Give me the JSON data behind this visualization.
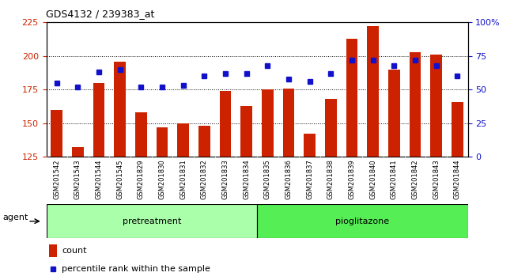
{
  "title": "GDS4132 / 239383_at",
  "samples": [
    "GSM201542",
    "GSM201543",
    "GSM201544",
    "GSM201545",
    "GSM201829",
    "GSM201830",
    "GSM201831",
    "GSM201832",
    "GSM201833",
    "GSM201834",
    "GSM201835",
    "GSM201836",
    "GSM201837",
    "GSM201838",
    "GSM201839",
    "GSM201840",
    "GSM201841",
    "GSM201842",
    "GSM201843",
    "GSM201844"
  ],
  "counts": [
    160,
    132,
    180,
    196,
    158,
    147,
    150,
    148,
    174,
    163,
    175,
    176,
    142,
    168,
    213,
    222,
    190,
    203,
    201,
    166
  ],
  "percentiles": [
    55,
    52,
    63,
    65,
    52,
    52,
    53,
    60,
    62,
    62,
    68,
    58,
    56,
    62,
    72,
    72,
    68,
    72,
    68,
    60
  ],
  "bar_color": "#cc2200",
  "dot_color": "#1111cc",
  "ylim_left": [
    125,
    225
  ],
  "ylim_right": [
    0,
    100
  ],
  "yticks_left": [
    125,
    150,
    175,
    200,
    225
  ],
  "yticks_right": [
    0,
    25,
    50,
    75,
    100
  ],
  "grid_lines": [
    150,
    175,
    200
  ],
  "legend_count_label": "count",
  "legend_pct_label": "percentile rank within the sample",
  "agent_label": "agent",
  "pretreatment_color": "#aaffaa",
  "pioglitazone_color": "#55ee55",
  "xtick_bg": "#c8c8c8",
  "plot_bg": "#ffffff",
  "title_fontsize": 9,
  "axis_fontsize": 8,
  "bar_width": 0.55
}
